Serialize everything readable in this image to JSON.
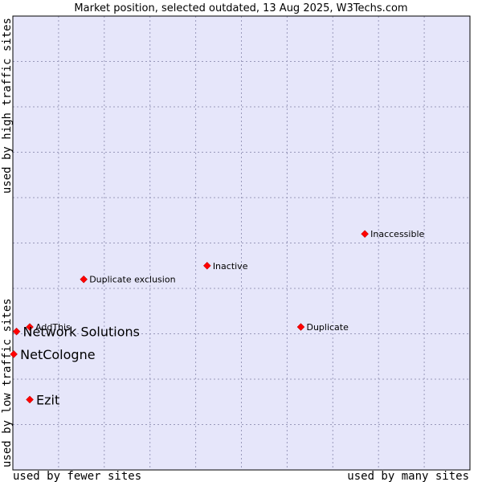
{
  "chart_data": {
    "type": "scatter",
    "title": "Market position, selected outdated, 13 Aug 2025, W3Techs.com",
    "xlabel_left": "used by fewer sites",
    "xlabel_right": "used by many sites",
    "ylabel_bottom": "used by low traffic sites",
    "ylabel_top": "used by high traffic sites",
    "xlim": [
      0,
      100
    ],
    "ylim": [
      0,
      100
    ],
    "grid": true,
    "background_color": "#e6e6fa",
    "grid_color": "#9999bb",
    "point_color": "#ff0000",
    "points": [
      {
        "label": "Inaccessible",
        "x": 77,
        "y": 52,
        "emphasis": false
      },
      {
        "label": "Inactive",
        "x": 42.5,
        "y": 45,
        "emphasis": false
      },
      {
        "label": "Duplicate exclusion",
        "x": 15.5,
        "y": 42,
        "emphasis": false
      },
      {
        "label": "Duplicate",
        "x": 63,
        "y": 31.5,
        "emphasis": false
      },
      {
        "label": "AddThis",
        "x": 3.7,
        "y": 31.5,
        "emphasis": false
      },
      {
        "label": "Network Solutions",
        "x": 0.8,
        "y": 30.5,
        "emphasis": true
      },
      {
        "label": "NetCologne",
        "x": 0.2,
        "y": 25.5,
        "emphasis": true
      },
      {
        "label": "Ezit",
        "x": 3.7,
        "y": 15.5,
        "emphasis": true
      }
    ]
  }
}
